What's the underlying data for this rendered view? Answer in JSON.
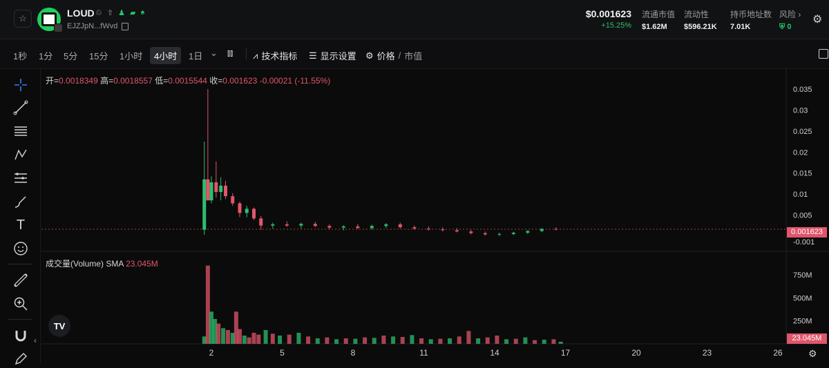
{
  "header": {
    "token_name": "LOUD",
    "address": "EJZJpN...fWvd",
    "price": "$0.001623",
    "change": "+15.25%",
    "stats": [
      {
        "label": "流通市值",
        "value": "$1.62M"
      },
      {
        "label": "流动性",
        "value": "$596.21K"
      },
      {
        "label": "持币地址数",
        "value": "7.01K"
      }
    ],
    "risk_label": "风险 ›",
    "risk_value": "0"
  },
  "toolbar": {
    "timeframes": [
      "1秒",
      "1分",
      "5分",
      "15分",
      "1小时",
      "4小时",
      "1日"
    ],
    "active_timeframe": "4小时",
    "indicators_label": "技术指标",
    "display_label": "显示设置",
    "price_label": "价格",
    "mcap_label": "市值"
  },
  "ohlc": {
    "open_label": "开=",
    "open": "0.0018349",
    "high_label": "高=",
    "high": "0.0018557",
    "low_label": "低=",
    "low": "0.0015544",
    "close_label": "收=",
    "close": "0.001623",
    "change": "-0.00021 (-11.55%)"
  },
  "volume": {
    "label": "成交量(Volume)",
    "sma_label": "SMA",
    "sma_value": "23.045M",
    "current_value": "23.045M"
  },
  "price_axis": [
    "0.035",
    "0.03",
    "0.025",
    "0.02",
    "0.015",
    "0.01",
    "0.005",
    "-0.001"
  ],
  "volume_axis": [
    "750M",
    "500M",
    "250M"
  ],
  "time_axis": [
    "2",
    "5",
    "8",
    "11",
    "14",
    "17",
    "20",
    "23",
    "26"
  ],
  "current_price_tag": "0.001623",
  "tv_logo": "TV",
  "colors": {
    "up": "#2ebd6e",
    "down": "#e0566b",
    "accent": "#1fcf5d"
  },
  "chart_data": {
    "type": "candlestick",
    "price_series": [
      {
        "x": 1.7,
        "o": 0.0015,
        "h": 0.0225,
        "l": 0.0003,
        "c": 0.0135
      },
      {
        "x": 1.85,
        "o": 0.0135,
        "h": 0.035,
        "l": 0.0105,
        "c": 0.0085
      },
      {
        "x": 2.0,
        "o": 0.0085,
        "h": 0.0142,
        "l": 0.0078,
        "c": 0.0128
      },
      {
        "x": 2.2,
        "o": 0.0128,
        "h": 0.0178,
        "l": 0.0092,
        "c": 0.0105
      },
      {
        "x": 2.4,
        "o": 0.0105,
        "h": 0.014,
        "l": 0.0085,
        "c": 0.012
      },
      {
        "x": 2.6,
        "o": 0.012,
        "h": 0.0132,
        "l": 0.0088,
        "c": 0.0095
      },
      {
        "x": 2.9,
        "o": 0.0095,
        "h": 0.0102,
        "l": 0.0072,
        "c": 0.0078
      },
      {
        "x": 3.2,
        "o": 0.0078,
        "h": 0.0082,
        "l": 0.0045,
        "c": 0.0055
      },
      {
        "x": 3.5,
        "o": 0.0055,
        "h": 0.0072,
        "l": 0.0045,
        "c": 0.0065
      },
      {
        "x": 3.8,
        "o": 0.0065,
        "h": 0.0068,
        "l": 0.0038,
        "c": 0.0042
      },
      {
        "x": 4.1,
        "o": 0.0042,
        "h": 0.0048,
        "l": 0.0015,
        "c": 0.0025
      },
      {
        "x": 4.6,
        "o": 0.0025,
        "h": 0.0032,
        "l": 0.0018,
        "c": 0.0028
      },
      {
        "x": 5.2,
        "o": 0.0028,
        "h": 0.0035,
        "l": 0.0022,
        "c": 0.0025
      },
      {
        "x": 5.8,
        "o": 0.0025,
        "h": 0.0032,
        "l": 0.0018,
        "c": 0.0029
      },
      {
        "x": 6.4,
        "o": 0.0029,
        "h": 0.0034,
        "l": 0.0022,
        "c": 0.0024
      },
      {
        "x": 7.0,
        "o": 0.0024,
        "h": 0.0028,
        "l": 0.0016,
        "c": 0.002
      },
      {
        "x": 7.6,
        "o": 0.002,
        "h": 0.0026,
        "l": 0.0014,
        "c": 0.0023
      },
      {
        "x": 8.2,
        "o": 0.0023,
        "h": 0.0029,
        "l": 0.0017,
        "c": 0.0019
      },
      {
        "x": 8.8,
        "o": 0.0019,
        "h": 0.0027,
        "l": 0.0015,
        "c": 0.0024
      },
      {
        "x": 9.4,
        "o": 0.0024,
        "h": 0.0031,
        "l": 0.0019,
        "c": 0.0028
      },
      {
        "x": 10.0,
        "o": 0.0028,
        "h": 0.0032,
        "l": 0.0018,
        "c": 0.0021
      },
      {
        "x": 10.6,
        "o": 0.0021,
        "h": 0.0025,
        "l": 0.0015,
        "c": 0.0018
      },
      {
        "x": 11.2,
        "o": 0.0018,
        "h": 0.0023,
        "l": 0.0013,
        "c": 0.0016
      },
      {
        "x": 11.8,
        "o": 0.0016,
        "h": 0.0021,
        "l": 0.0011,
        "c": 0.0014
      },
      {
        "x": 12.4,
        "o": 0.0014,
        "h": 0.0019,
        "l": 0.0009,
        "c": 0.0011
      },
      {
        "x": 13.0,
        "o": 0.0011,
        "h": 0.0015,
        "l": 0.0004,
        "c": 0.0007
      },
      {
        "x": 13.6,
        "o": 0.0007,
        "h": 0.0011,
        "l": 0.0001,
        "c": 0.0004
      },
      {
        "x": 14.2,
        "o": 0.0004,
        "h": 0.0008,
        "l": 0.0,
        "c": 0.0005
      },
      {
        "x": 14.8,
        "o": 0.0005,
        "h": 0.001,
        "l": 0.0002,
        "c": 0.0008
      },
      {
        "x": 15.4,
        "o": 0.0008,
        "h": 0.0014,
        "l": 0.0005,
        "c": 0.0012
      },
      {
        "x": 16.0,
        "o": 0.0012,
        "h": 0.0019,
        "l": 0.0009,
        "c": 0.0017
      },
      {
        "x": 16.6,
        "o": 0.0017,
        "h": 0.0021,
        "l": 0.0014,
        "c": 0.0016
      }
    ],
    "volume_series": [
      {
        "x": 1.7,
        "v": 80,
        "up": true
      },
      {
        "x": 1.85,
        "v": 850,
        "up": false
      },
      {
        "x": 2.0,
        "v": 350,
        "up": true
      },
      {
        "x": 2.15,
        "v": 270,
        "up": true
      },
      {
        "x": 2.3,
        "v": 220,
        "up": false
      },
      {
        "x": 2.5,
        "v": 170,
        "up": true
      },
      {
        "x": 2.7,
        "v": 150,
        "up": false
      },
      {
        "x": 2.9,
        "v": 120,
        "up": true
      },
      {
        "x": 3.05,
        "v": 350,
        "up": false
      },
      {
        "x": 3.2,
        "v": 160,
        "up": false
      },
      {
        "x": 3.4,
        "v": 90,
        "up": true
      },
      {
        "x": 3.6,
        "v": 70,
        "up": false
      },
      {
        "x": 3.8,
        "v": 120,
        "up": false
      },
      {
        "x": 4.0,
        "v": 100,
        "up": false
      },
      {
        "x": 4.3,
        "v": 150,
        "up": true
      },
      {
        "x": 4.6,
        "v": 110,
        "up": false
      },
      {
        "x": 4.9,
        "v": 90,
        "up": true
      },
      {
        "x": 5.3,
        "v": 100,
        "up": false
      },
      {
        "x": 5.7,
        "v": 120,
        "up": true
      },
      {
        "x": 6.1,
        "v": 80,
        "up": false
      },
      {
        "x": 6.5,
        "v": 60,
        "up": true
      },
      {
        "x": 6.9,
        "v": 70,
        "up": false
      },
      {
        "x": 7.3,
        "v": 50,
        "up": true
      },
      {
        "x": 7.7,
        "v": 60,
        "up": false
      },
      {
        "x": 8.1,
        "v": 55,
        "up": true
      },
      {
        "x": 8.5,
        "v": 70,
        "up": false
      },
      {
        "x": 8.9,
        "v": 65,
        "up": true
      },
      {
        "x": 9.3,
        "v": 90,
        "up": false
      },
      {
        "x": 9.7,
        "v": 80,
        "up": true
      },
      {
        "x": 10.1,
        "v": 75,
        "up": false
      },
      {
        "x": 10.5,
        "v": 95,
        "up": true
      },
      {
        "x": 10.9,
        "v": 60,
        "up": false
      },
      {
        "x": 11.3,
        "v": 50,
        "up": true
      },
      {
        "x": 11.7,
        "v": 55,
        "up": false
      },
      {
        "x": 12.1,
        "v": 60,
        "up": true
      },
      {
        "x": 12.5,
        "v": 80,
        "up": false
      },
      {
        "x": 12.9,
        "v": 140,
        "up": false
      },
      {
        "x": 13.3,
        "v": 60,
        "up": true
      },
      {
        "x": 13.7,
        "v": 70,
        "up": false
      },
      {
        "x": 14.1,
        "v": 90,
        "up": false
      },
      {
        "x": 14.5,
        "v": 50,
        "up": true
      },
      {
        "x": 14.9,
        "v": 55,
        "up": false
      },
      {
        "x": 15.3,
        "v": 70,
        "up": true
      },
      {
        "x": 15.7,
        "v": 40,
        "up": false
      },
      {
        "x": 16.1,
        "v": 45,
        "up": true
      },
      {
        "x": 16.5,
        "v": 50,
        "up": false
      },
      {
        "x": 16.8,
        "v": 23,
        "up": true
      }
    ],
    "price_range": [
      -0.001,
      0.0355
    ],
    "volume_range": [
      0,
      900
    ],
    "x_range": [
      0,
      27
    ]
  }
}
